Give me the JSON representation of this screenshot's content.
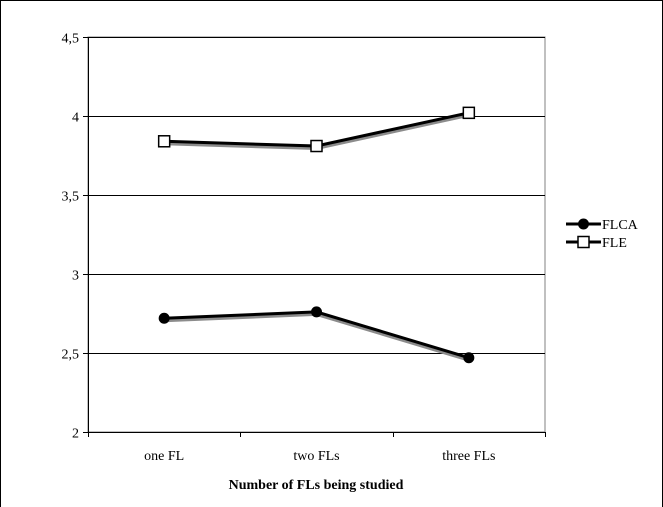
{
  "chart_data": {
    "type": "line",
    "title": "",
    "xlabel": "Number of FLs being studied",
    "ylabel": "",
    "categories": [
      "one FL",
      "two FLs",
      "three FLs"
    ],
    "ylim": [
      2,
      4.5
    ],
    "yticks": [
      "2",
      "2,5",
      "3",
      "3,5",
      "4",
      "4,5"
    ],
    "ytick_values": [
      2,
      2.5,
      3,
      3.5,
      4,
      4.5
    ],
    "grid": true,
    "legend_position": "right",
    "series": [
      {
        "name": "FLCA",
        "values": [
          2.72,
          2.76,
          2.47
        ],
        "marker": "filled-circle",
        "color": "#000000"
      },
      {
        "name": "FLE",
        "values": [
          3.84,
          3.81,
          4.02
        ],
        "marker": "open-square",
        "color": "#000000"
      }
    ],
    "shadow_color": "#8c8c8c"
  }
}
